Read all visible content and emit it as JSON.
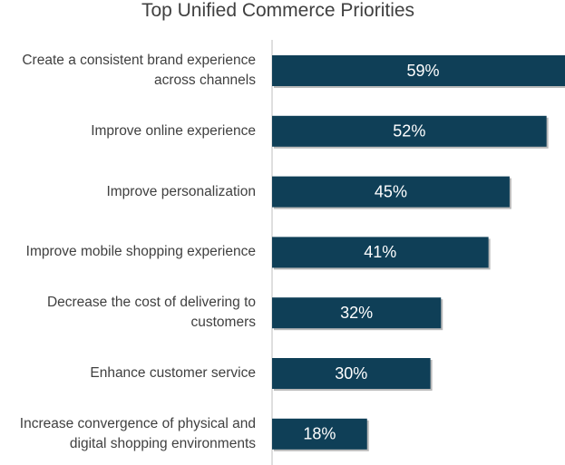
{
  "chart_data": {
    "type": "bar",
    "orientation": "horizontal",
    "title": "Top Unified Commerce Priorities",
    "categories": [
      "Create a consistent brand experience across channels",
      "Improve online experience",
      "Improve personalization",
      "Improve mobile shopping experience",
      "Decrease the cost of delivering to customers",
      "Enhance customer service",
      "Increase convergence of physical and digital shopping environments"
    ],
    "values": [
      59,
      52,
      45,
      41,
      32,
      30,
      18
    ],
    "value_labels": [
      "59%",
      "52%",
      "45%",
      "41%",
      "32%",
      "30%",
      "18%"
    ],
    "color": "#0f3f57"
  }
}
